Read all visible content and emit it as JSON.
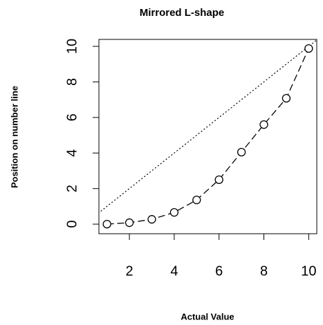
{
  "chart_data": {
    "type": "line",
    "title": "Mirrored L-shape",
    "xlabel": "Actual Value",
    "ylabel": "Position on number line",
    "x": [
      1,
      2,
      3,
      4,
      5,
      6,
      7,
      8,
      9,
      10
    ],
    "series": [
      {
        "color": "#000000",
        "values": [
          0,
          0.08,
          0.27,
          0.66,
          1.36,
          2.5,
          4.05,
          5.6,
          7.08,
          9.88
        ]
      }
    ],
    "reference_line": {
      "x": [
        0,
        11
      ],
      "values": [
        0,
        11
      ],
      "color": "#000000"
    },
    "xlim": [
      0.64,
      10.36
    ],
    "ylim": [
      -0.54,
      10.39
    ],
    "xticks": [
      2,
      4,
      6,
      8,
      10
    ],
    "yticks": [
      0,
      2,
      4,
      6,
      8,
      10
    ]
  }
}
